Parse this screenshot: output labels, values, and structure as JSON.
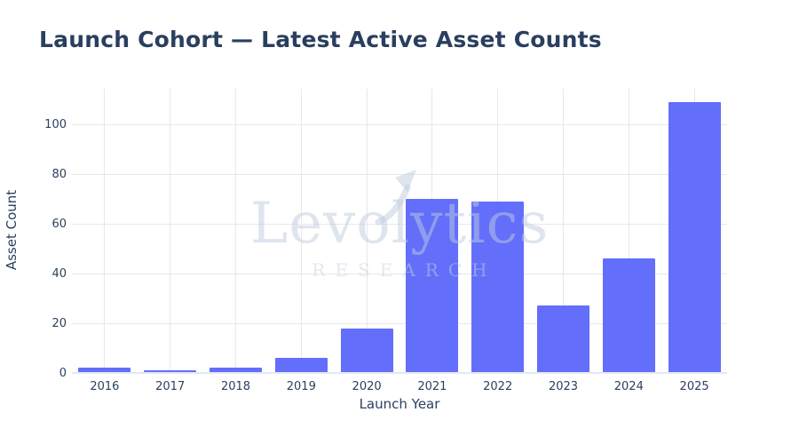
{
  "header": {
    "title": "Launch Cohort — Latest Active Asset Counts"
  },
  "watermark": {
    "brand": "Levolytics",
    "subtitle": "RESEARCH",
    "arrow_icon": "trend-up-arrow-icon",
    "color": "rgba(190,203,222,0.5)"
  },
  "chart_data": {
    "type": "bar",
    "title": "Launch Cohort — Latest Active Asset Counts",
    "xlabel": "Launch Year",
    "ylabel": "Asset Count",
    "categories": [
      "2016",
      "2017",
      "2018",
      "2019",
      "2020",
      "2021",
      "2022",
      "2023",
      "2024",
      "2025"
    ],
    "values": [
      2,
      1,
      2,
      6,
      18,
      70,
      69,
      27,
      46,
      109
    ],
    "yticks": [
      0,
      20,
      40,
      60,
      80,
      100
    ],
    "ylim": [
      0,
      114.3
    ],
    "grid": true,
    "legend_position": "none",
    "colors": {
      "bar": "#636efa",
      "grid": "#e8e8e8",
      "zeroline": "#e4e8f6",
      "tick_text": "#2a3f5f",
      "title_text": "#2a3f5f"
    }
  }
}
